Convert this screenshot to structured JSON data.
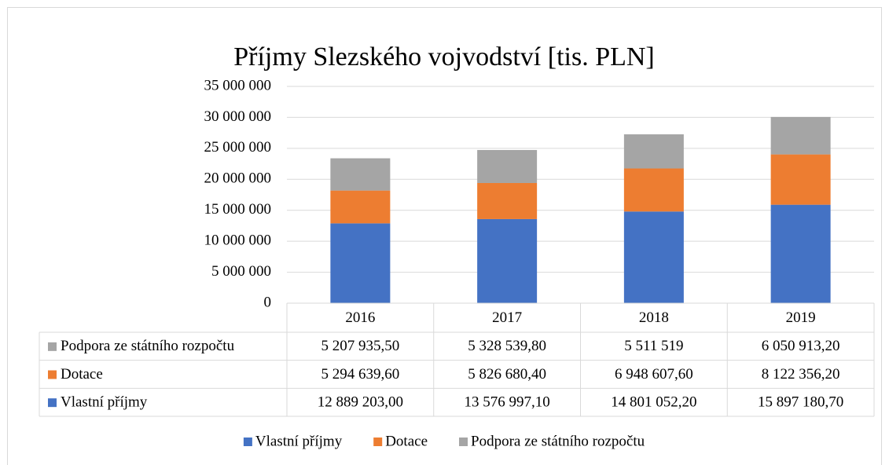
{
  "chart_data": {
    "type": "bar",
    "stacked": true,
    "title": "Příjmy Slezského vojvodství [tis. PLN]",
    "categories": [
      "2016",
      "2017",
      "2018",
      "2019"
    ],
    "series": [
      {
        "name": "Vlastní příjmy",
        "color": "#4472c4",
        "values": [
          12889203.0,
          13576997.1,
          14801052.2,
          15897180.7
        ],
        "value_labels": [
          "12 889 203,00",
          "13 576 997,10",
          "14 801 052,20",
          "15 897 180,70"
        ]
      },
      {
        "name": "Dotace",
        "color": "#ed7d31",
        "values": [
          5294639.6,
          5826680.4,
          6948607.6,
          8122356.2
        ],
        "value_labels": [
          "5 294 639,60",
          "5 826 680,40",
          "6 948 607,60",
          "8 122 356,20"
        ]
      },
      {
        "name": "Podpora ze státního rozpočtu",
        "color": "#a5a5a5",
        "values": [
          5207935.5,
          5328539.8,
          5511519,
          6050913.2
        ],
        "value_labels": [
          "5 207 935,50",
          "5 328 539,80",
          "5 511 519",
          "6 050 913,20"
        ]
      }
    ],
    "ylim": [
      0,
      35000000
    ],
    "yticks": [
      0,
      {
        "value": 5000000,
        "label": "5 000 000"
      },
      {
        "value": 10000000,
        "label": "10 000 000"
      },
      {
        "value": 15000000,
        "label": "15 000 000"
      },
      {
        "value": 20000000,
        "label": "20 000 000"
      },
      {
        "value": 25000000,
        "label": "25 000 000"
      },
      {
        "value": 30000000,
        "label": "30 000 000"
      },
      {
        "value": 35000000,
        "label": "35 000 000"
      }
    ],
    "grid": true,
    "data_table": true,
    "legend": "bottom"
  }
}
